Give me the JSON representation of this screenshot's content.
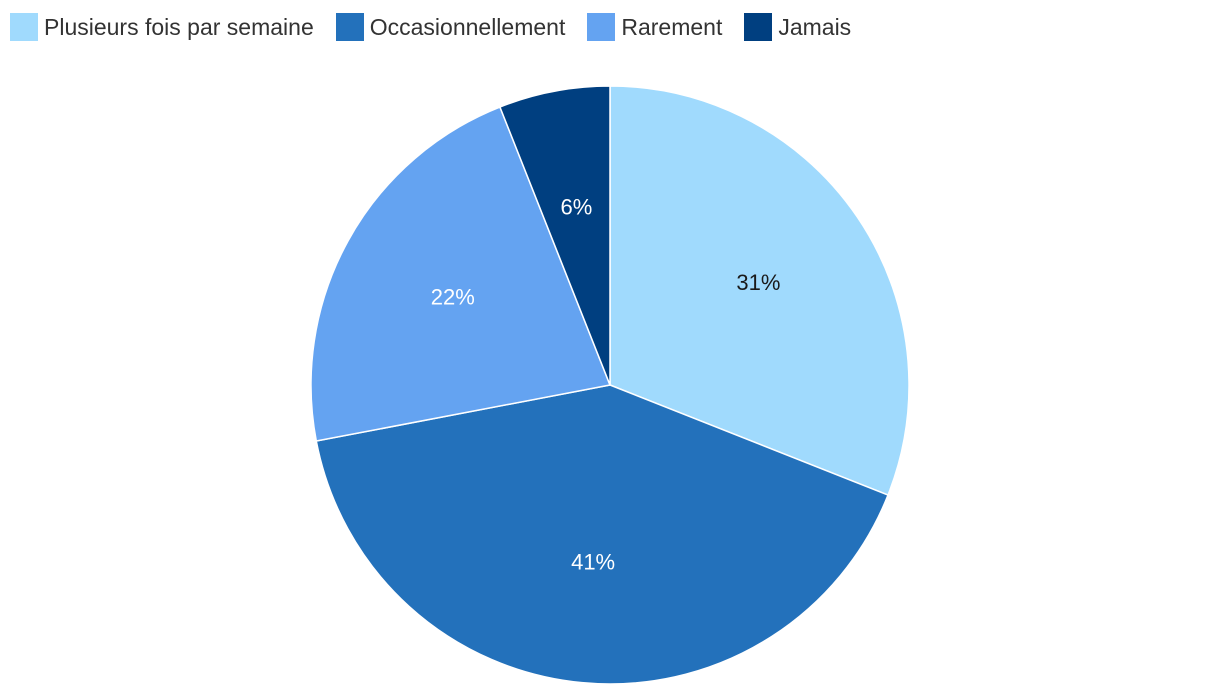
{
  "chart_data": {
    "type": "pie",
    "categories": [
      "Plusieurs fois par semaine",
      "Occasionnellement",
      "Rarement",
      "Jamais"
    ],
    "values": [
      31,
      41,
      22,
      6
    ],
    "data_labels": [
      "31%",
      "41%",
      "22%",
      "6%"
    ],
    "colors": [
      "#a0dafd",
      "#2371bb",
      "#64a3f1",
      "#003f80"
    ],
    "label_colors": [
      "#1a1a1a",
      "#ffffff",
      "#ffffff",
      "#ffffff"
    ],
    "legend_position": "top-left",
    "start_angle_deg": 0,
    "direction": "clockwise"
  }
}
